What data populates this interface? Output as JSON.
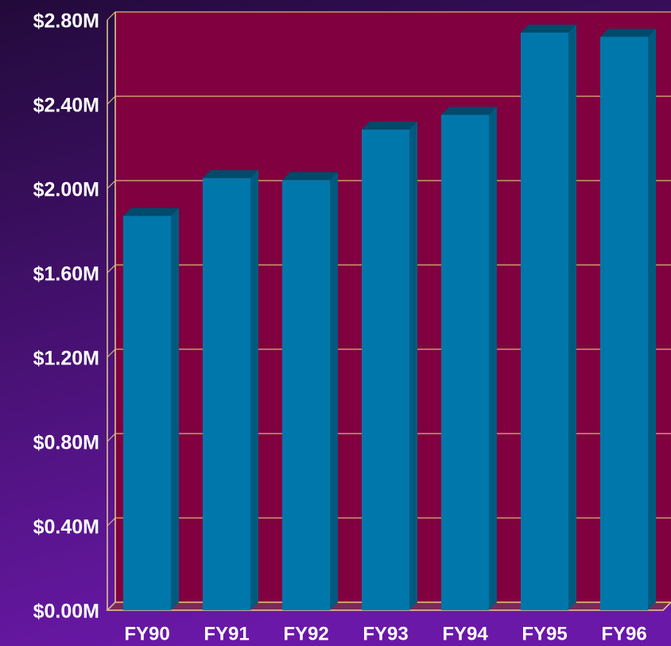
{
  "chart_data": {
    "type": "bar",
    "categories": [
      "FY90",
      "FY91",
      "FY92",
      "FY93",
      "FY94",
      "FY95",
      "FY96"
    ],
    "values": [
      1.87,
      2.05,
      2.04,
      2.28,
      2.35,
      2.74,
      2.72
    ],
    "color": "#0077aa",
    "ylim": [
      0,
      2.8
    ],
    "yticks": [
      {
        "value": 0,
        "label": "$0.00M"
      },
      {
        "value": 0.4,
        "label": "$0.40M"
      },
      {
        "value": 0.8,
        "label": "$0.80M"
      },
      {
        "value": 1.2,
        "label": "$1.20M"
      },
      {
        "value": 1.6,
        "label": "$1.60M"
      },
      {
        "value": 2.0,
        "label": "$2.00M"
      },
      {
        "value": 2.4,
        "label": "$2.40M"
      },
      {
        "value": 2.8,
        "label": "$2.80M"
      }
    ],
    "grid": true
  }
}
